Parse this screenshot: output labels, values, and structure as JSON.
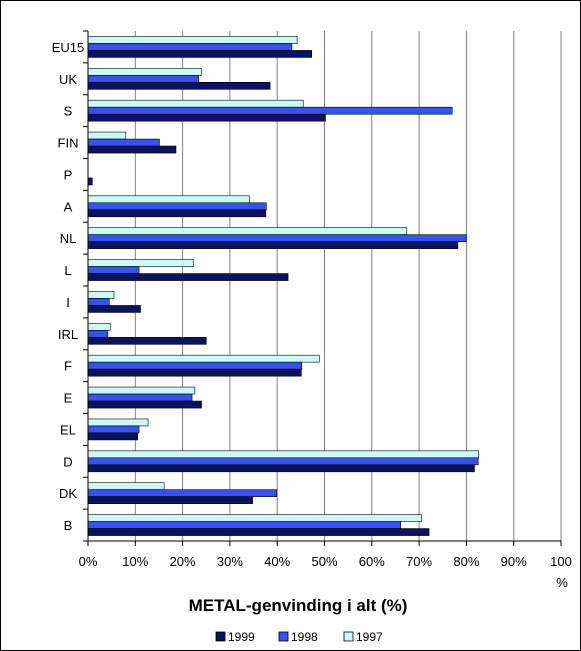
{
  "chart_data": {
    "type": "bar",
    "orientation": "horizontal",
    "title": "METAL-genvinding i alt (%)",
    "xlabel": "",
    "ylabel": "",
    "x_unit": "%",
    "xlim": [
      0,
      100
    ],
    "x_ticks": [
      "0%",
      "10%",
      "20%",
      "30%",
      "40%",
      "50%",
      "60%",
      "70%",
      "80%",
      "90%",
      "100"
    ],
    "grid": true,
    "legend_position": "bottom",
    "categories": [
      "EU15",
      "UK",
      "S",
      "FIN",
      "P",
      "A",
      "NL",
      "L",
      "I",
      "IRL",
      "F",
      "E",
      "EL",
      "D",
      "DK",
      "B"
    ],
    "series": [
      {
        "name": "1999",
        "color": "#0a1263",
        "values": [
          47.3,
          38.5,
          50.2,
          18.6,
          0.9,
          37.6,
          78.2,
          42.3,
          11.1,
          25.0,
          45.1,
          24.0,
          10.5,
          81.7,
          34.8,
          72.1
        ]
      },
      {
        "name": "1998",
        "color": "#3355ee",
        "values": [
          43.1,
          23.4,
          77.0,
          15.1,
          0.0,
          37.7,
          80.0,
          10.8,
          4.5,
          4.2,
          45.2,
          22.0,
          10.8,
          82.5,
          39.9,
          66.1
        ]
      },
      {
        "name": "1997",
        "color": "#ccfafc",
        "values": [
          44.2,
          24.0,
          45.5,
          8.0,
          0.0,
          34.1,
          67.4,
          22.3,
          5.5,
          4.7,
          48.9,
          22.6,
          12.7,
          82.6,
          16.1,
          70.5
        ]
      }
    ]
  }
}
